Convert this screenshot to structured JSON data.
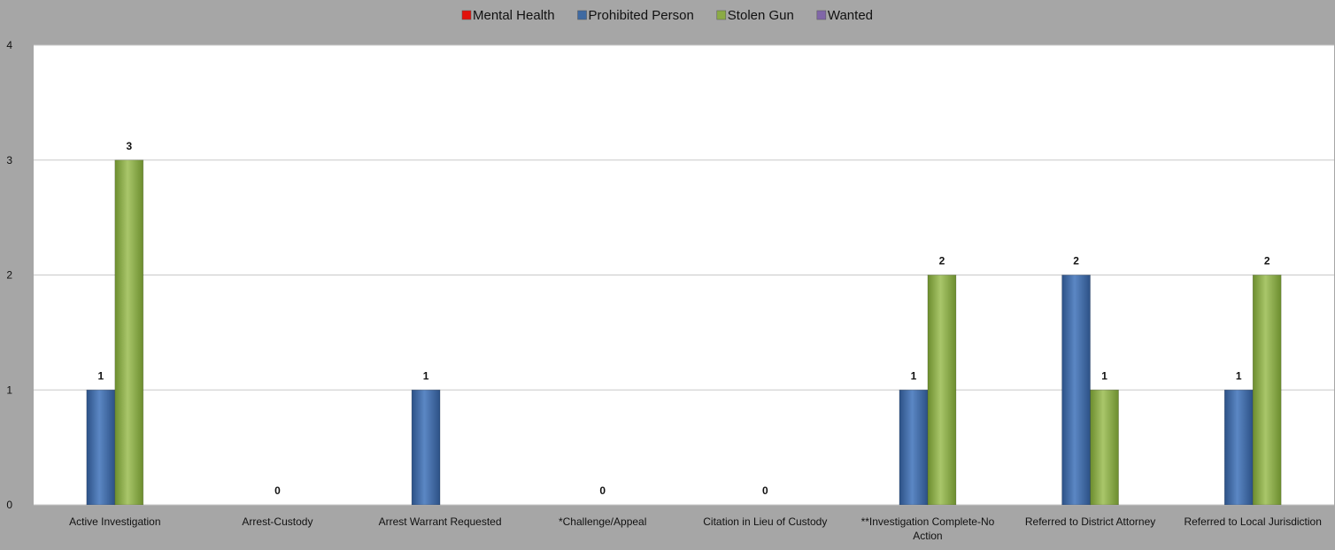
{
  "chart_data": {
    "type": "bar",
    "categories": [
      "Active Investigation",
      "Arrest-Custody",
      "Arrest Warrant Requested",
      "*Challenge/Appeal",
      "Citation in Lieu of Custody",
      "**Investigation Complete-No Action",
      "Referred to District Attorney",
      "Referred to Local Jurisdiction"
    ],
    "series": [
      {
        "name": "Mental Health",
        "color": "#e3120b",
        "values": [
          null,
          null,
          null,
          null,
          null,
          null,
          null,
          null
        ]
      },
      {
        "name": "Prohibited Person",
        "color": "#3f6aa2",
        "values": [
          1,
          null,
          1,
          null,
          null,
          1,
          2,
          1
        ]
      },
      {
        "name": "Stolen Gun",
        "color": "#8bab45",
        "values": [
          3,
          null,
          null,
          null,
          null,
          2,
          1,
          2
        ]
      },
      {
        "name": "Wanted",
        "color": "#8066a8",
        "values": [
          null,
          null,
          null,
          null,
          null,
          null,
          null,
          null
        ]
      }
    ],
    "zero_labels": [
      null,
      "0",
      null,
      "0",
      "0",
      null,
      null,
      null
    ],
    "yticks": [
      "0",
      "1",
      "2",
      "3",
      "4"
    ],
    "ylim": [
      0,
      4
    ],
    "grid": true,
    "legend_position": "top"
  }
}
